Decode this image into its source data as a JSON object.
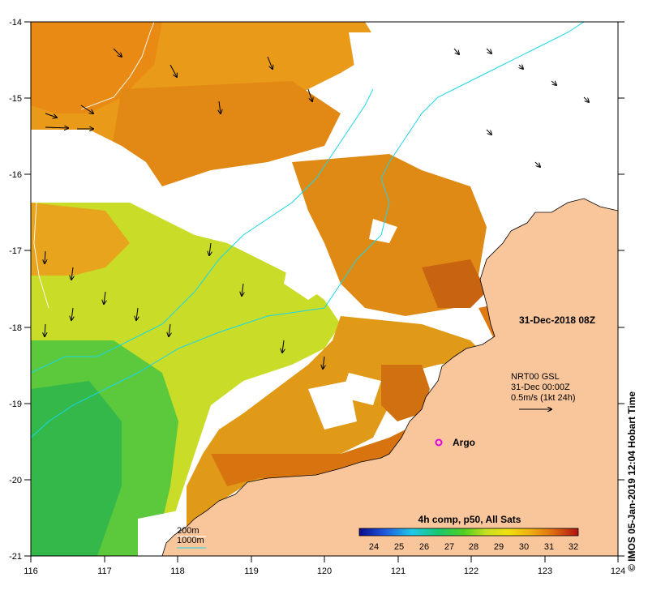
{
  "map": {
    "lon_ticks": [
      "116",
      "117",
      "118",
      "119",
      "120",
      "121",
      "122",
      "123",
      "124"
    ],
    "lat_ticks": [
      "-14",
      "-15",
      "-16",
      "-17",
      "-18",
      "-19",
      "-20",
      "-21"
    ],
    "date_label": "31-Dec-2018 08Z",
    "current_block": {
      "line1": "NRT00 GSL",
      "line2": "31-Dec 00:00Z",
      "line3": "0.5m/s (1kt 24h)"
    },
    "argo_label": "Argo",
    "depth_legend": {
      "line1": "200m",
      "line2": "1000m"
    },
    "colorbar": {
      "title": "4h comp, p50, All Sats",
      "ticks": [
        "24",
        "25",
        "26",
        "27",
        "28",
        "29",
        "30",
        "31",
        "32"
      ],
      "range": [
        23.5,
        32.2
      ]
    },
    "credit": "© IMOS 05-Jan-2019 12:04 Hobart Time",
    "colors": {
      "land": "#f9c69c",
      "isobath_1000": "#19d6e8",
      "isobath_200": "#ffffff",
      "argo": "#e000e0"
    }
  }
}
